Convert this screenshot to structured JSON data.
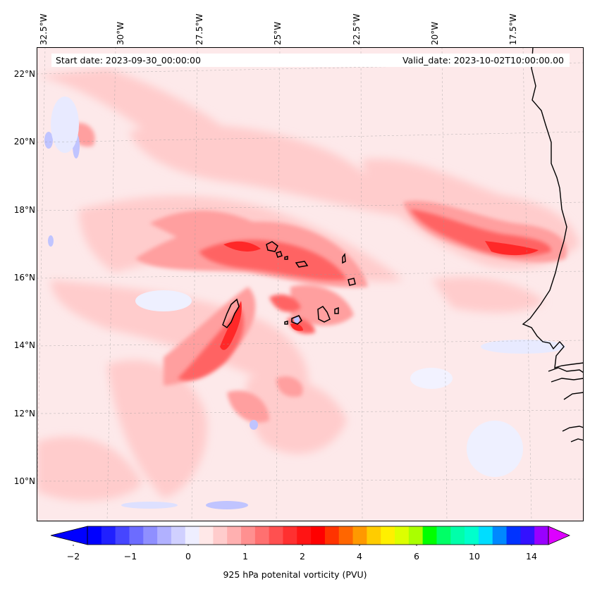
{
  "map": {
    "lon_labels": [
      "32.5°W",
      "30°W",
      "27.5°W",
      "25°W",
      "22.5°W",
      "20°W",
      "17.5°W"
    ],
    "lat_labels": [
      "22°N",
      "20°N",
      "18°N",
      "16°N",
      "14°N",
      "12°N",
      "10°N"
    ],
    "start_date": "Start date: 2023-09-30_00:00:00",
    "valid_date": "Valid_date: 2023-10-02T10:00:00.00",
    "field_levels": [
      "-2",
      "-1.75",
      "-1.5",
      "-1.25",
      "-1",
      "-0.75",
      "-0.5",
      "-0.25",
      "0",
      "0.25",
      "0.5",
      "0.75",
      "1",
      "1.25",
      "1.5",
      "1.75",
      "2",
      "2.5",
      "3",
      "3.5",
      "4",
      "5",
      "6",
      "7",
      "8",
      "9",
      "10",
      "11",
      "12",
      "13",
      "14",
      "15",
      "16"
    ],
    "colors": {
      "ocean_base": "#fde9ea",
      "pv_low": "#ffcccc",
      "pv_mid": "#ff9999",
      "pv_high": "#ff6b6b",
      "pv_max": "#ff2020",
      "negative_light": "#e8eaff",
      "negative": "#c0c4ff",
      "coastline": "#000000"
    }
  },
  "colorbar": {
    "tick_labels": [
      "−2",
      "−1",
      "0",
      "1",
      "2",
      "4",
      "6",
      "10",
      "14"
    ],
    "label": "925 hPa potenital vorticity (PVU)",
    "colors": [
      "#0000ff",
      "#2020ff",
      "#4646ff",
      "#6c6cff",
      "#8f8fff",
      "#b1b1ff",
      "#d0d0ff",
      "#eeeeff",
      "#ffe8e8",
      "#ffcccc",
      "#ffb0b0",
      "#ff9090",
      "#ff7070",
      "#ff5050",
      "#ff3030",
      "#ff1414",
      "#ff0000",
      "#ff3300",
      "#ff6600",
      "#ff9900",
      "#ffcc00",
      "#fff000",
      "#ddff00",
      "#aaff00",
      "#00ff00",
      "#00ff66",
      "#00ffaa",
      "#00ffcc",
      "#00ddff",
      "#0088ff",
      "#0033ff",
      "#3311ff",
      "#9900ff"
    ],
    "over_color": "#dd00ff",
    "under_color": "#0000ff"
  }
}
